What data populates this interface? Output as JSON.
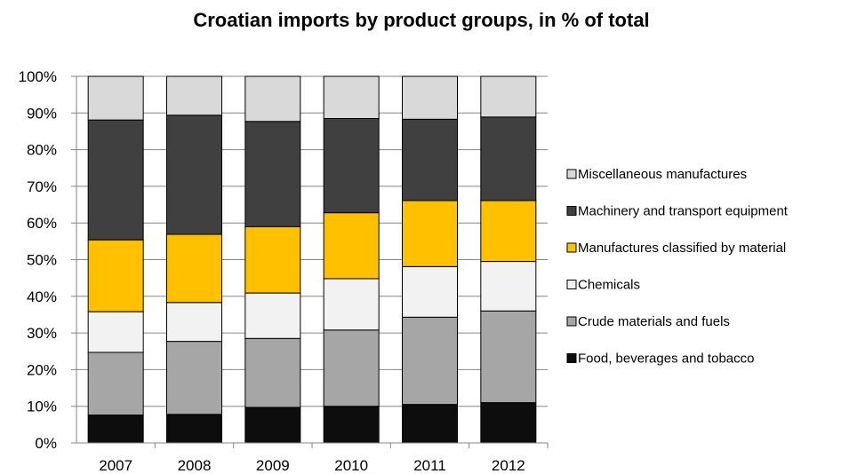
{
  "chart_data": {
    "type": "bar",
    "stacked": true,
    "title": "Croatian imports by product groups, in % of total",
    "xlabel": "",
    "ylabel": "",
    "ylim": [
      0,
      100
    ],
    "yticks": [
      "0%",
      "10%",
      "20%",
      "30%",
      "40%",
      "50%",
      "60%",
      "70%",
      "80%",
      "90%",
      "100%"
    ],
    "categories": [
      "2007",
      "2008",
      "2009",
      "2010",
      "2011",
      "2012"
    ],
    "grid": true,
    "legend_position": "right",
    "series": [
      {
        "name": "Food, beverages and tobacco",
        "color": "#0d0d0d",
        "values": [
          7.6,
          7.8,
          9.7,
          10.0,
          10.5,
          11.0
        ]
      },
      {
        "name": "Crude materials and fuels",
        "color": "#a6a6a6",
        "values": [
          17.1,
          19.9,
          18.8,
          20.8,
          23.8,
          25.0
        ]
      },
      {
        "name": "Chemicals",
        "color": "#f2f2f2",
        "values": [
          11.1,
          10.6,
          12.4,
          14.0,
          13.8,
          13.5
        ]
      },
      {
        "name": "Manufactures classified by material",
        "color": "#ffc000",
        "values": [
          19.6,
          18.6,
          18.1,
          18.0,
          18.0,
          16.6
        ]
      },
      {
        "name": "Machinery and transport equipment",
        "color": "#404040",
        "values": [
          32.7,
          32.5,
          28.7,
          25.7,
          22.2,
          22.8
        ]
      },
      {
        "name": "Miscellaneous manufactures",
        "color": "#d9d9d9",
        "values": [
          11.9,
          10.6,
          12.3,
          11.5,
          11.7,
          11.1
        ]
      }
    ]
  }
}
